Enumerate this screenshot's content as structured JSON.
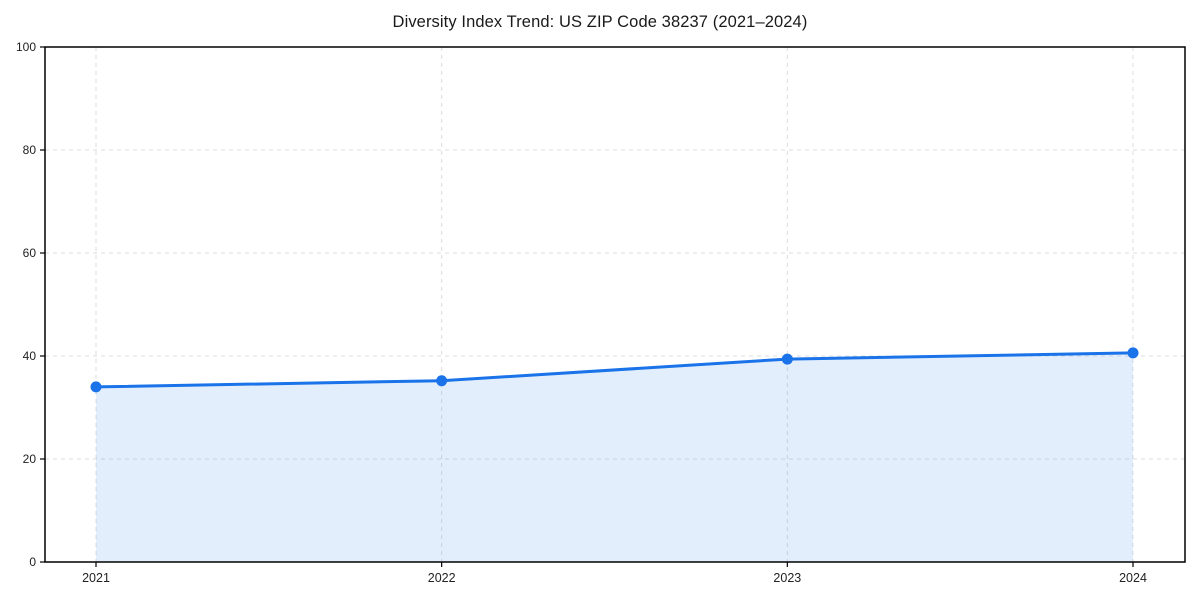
{
  "chart_data": {
    "type": "area",
    "title": "Diversity Index Trend: US ZIP Code 38237 (2021–2024)",
    "categories": [
      "2021",
      "2022",
      "2023",
      "2024"
    ],
    "values": [
      34.0,
      35.2,
      39.4,
      40.6
    ],
    "series_name": "Diversity Index",
    "xlabel": "",
    "ylabel": "",
    "ylim": [
      0,
      100
    ],
    "yticks": [
      0,
      20,
      40,
      60,
      80,
      100
    ],
    "grid": true,
    "grid_style": "dashed",
    "legend": false,
    "colors": {
      "line": "#1a73e8",
      "marker": "#1a73e8",
      "fill": "#1a73e8",
      "fill_opacity": 0.12,
      "grid": "#dcdcdc",
      "spine": "#000000",
      "tick_label": "#222222"
    }
  }
}
